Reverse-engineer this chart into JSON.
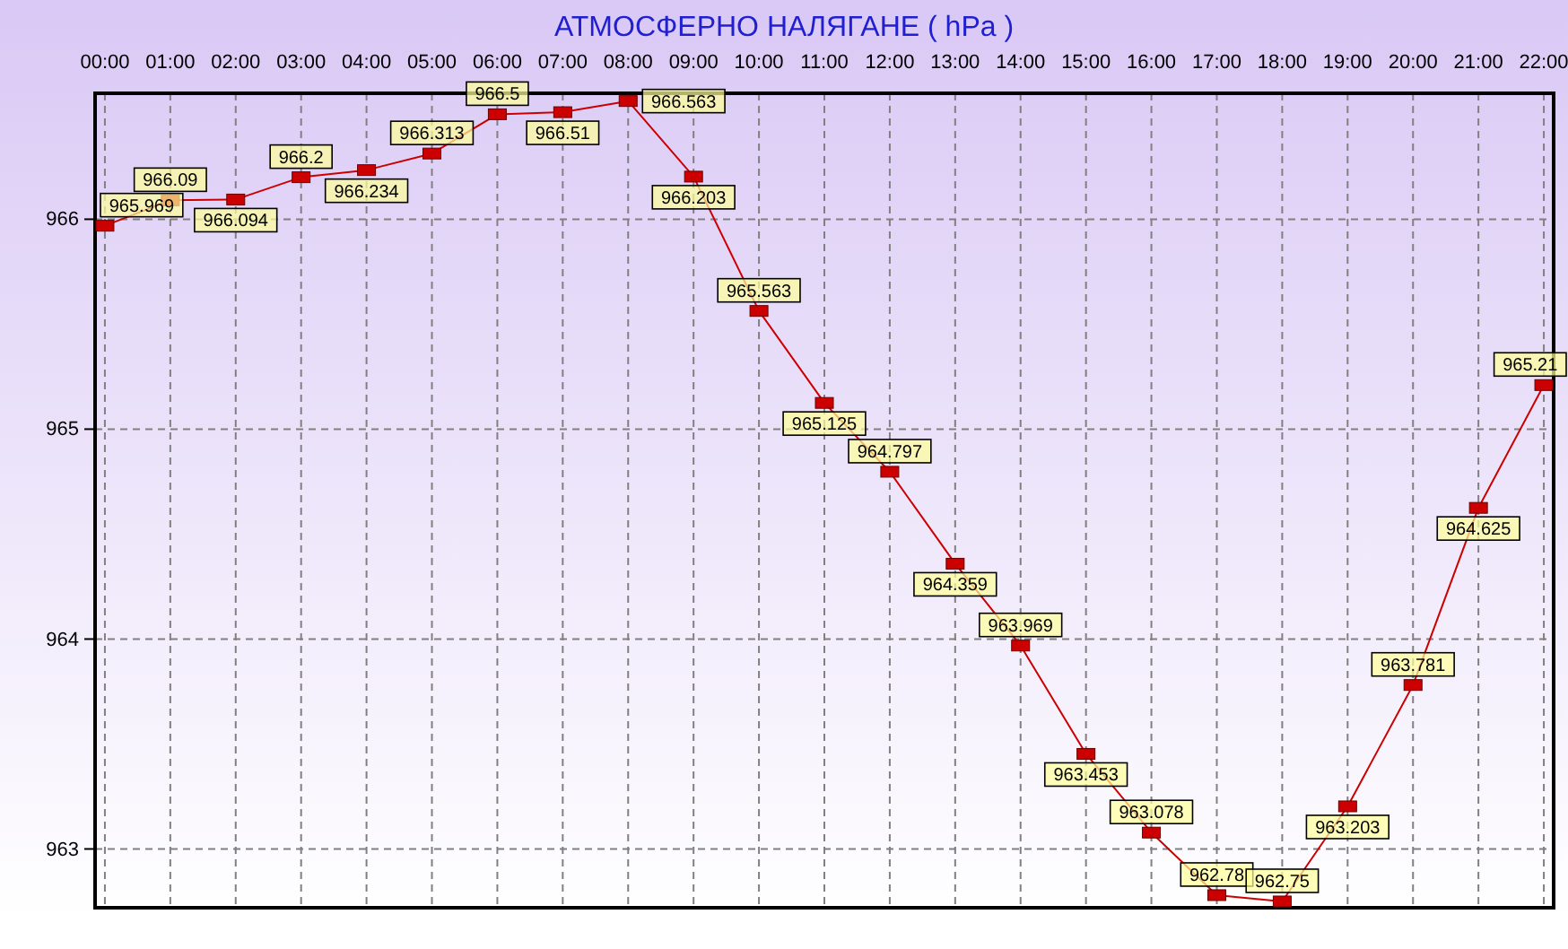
{
  "chart_data": {
    "type": "line",
    "title": "АТМОСФЕРНО НАЛЯГАНЕ  ( hPa )",
    "x": [
      0,
      1,
      2,
      3,
      4,
      5,
      6,
      7,
      8,
      9,
      10,
      11,
      12,
      13,
      14,
      15,
      16,
      17,
      18,
      19,
      20,
      21,
      22
    ],
    "series": [
      {
        "color": "#cc0000",
        "values": [
          965.969,
          966.09,
          966.094,
          966.2,
          966.234,
          966.313,
          966.5,
          966.51,
          966.563,
          966.203,
          965.563,
          965.125,
          964.797,
          964.359,
          963.969,
          963.453,
          963.078,
          962.78,
          962.75,
          963.203,
          963.781,
          964.625,
          965.21
        ]
      }
    ],
    "xlim": [
      -0.15,
      22.15
    ],
    "xticks": [
      {
        "value": 0,
        "label": "00:00"
      },
      {
        "value": 1,
        "label": "01:00"
      },
      {
        "value": 2,
        "label": "02:00"
      },
      {
        "value": 3,
        "label": "03:00"
      },
      {
        "value": 4,
        "label": "04:00"
      },
      {
        "value": 5,
        "label": "05:00"
      },
      {
        "value": 6,
        "label": "06:00"
      },
      {
        "value": 7,
        "label": "07:00"
      },
      {
        "value": 8,
        "label": "08:00"
      },
      {
        "value": 9,
        "label": "09:00"
      },
      {
        "value": 10,
        "label": "10:00"
      },
      {
        "value": 11,
        "label": "11:00"
      },
      {
        "value": 12,
        "label": "12:00"
      },
      {
        "value": 13,
        "label": "13:00"
      },
      {
        "value": 14,
        "label": "14:00"
      },
      {
        "value": 15,
        "label": "15:00"
      },
      {
        "value": 16,
        "label": "16:00"
      },
      {
        "value": 17,
        "label": "17:00"
      },
      {
        "value": 18,
        "label": "18:00"
      },
      {
        "value": 19,
        "label": "19:00"
      },
      {
        "value": 20,
        "label": "20:00"
      },
      {
        "value": 21,
        "label": "21:00"
      },
      {
        "value": 22,
        "label": "22:00"
      }
    ],
    "ylim": [
      962.72,
      966.6
    ],
    "yticks": [
      963,
      964,
      965,
      966
    ],
    "grid": true,
    "marker": "square",
    "line_style": "solid",
    "data_labels": true
  }
}
